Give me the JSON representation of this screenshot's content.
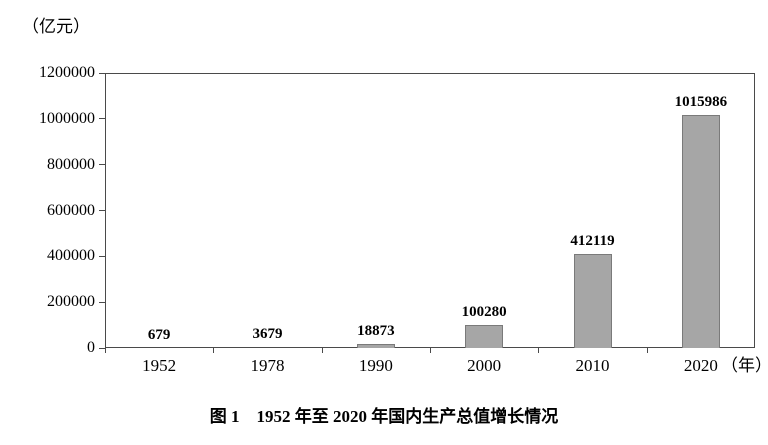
{
  "chart_data": {
    "type": "bar",
    "title": "图 1　1952 年至 2020 年国内生产总值增长情况",
    "unit_label": "（亿元）",
    "x_axis_suffix": "（年）",
    "categories": [
      "1952",
      "1978",
      "1990",
      "2000",
      "2010",
      "2020"
    ],
    "values": [
      679,
      3679,
      18873,
      100280,
      412119,
      1015986
    ],
    "value_labels": [
      "679",
      "3679",
      "18873",
      "100280",
      "412119",
      "1015986"
    ],
    "y_ticks": [
      0,
      200000,
      400000,
      600000,
      800000,
      1000000,
      1200000
    ],
    "ylim": [
      0,
      1200000
    ],
    "xlabel": "",
    "ylabel": "亿元",
    "grid": false,
    "legend_position": "none",
    "bar_color": "#a6a6a6",
    "bar_border_color": "#7a7a7a",
    "axis_color": "#4a4a4a"
  }
}
